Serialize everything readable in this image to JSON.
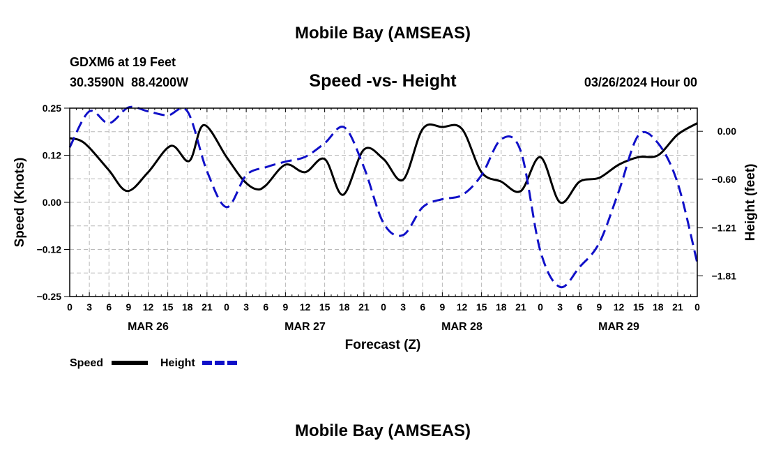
{
  "page": {
    "title_top": "Mobile Bay (AMSEAS)",
    "title_bottom": "Mobile Bay (AMSEAS)",
    "station_line": "GDXM6 at 19 Feet",
    "coords_line": "30.3590N  88.4200W",
    "datetime_line": "03/26/2024 Hour 00"
  },
  "colors": {
    "speed": "#000000",
    "height": "#1010c8"
  },
  "chart_data": {
    "type": "line",
    "title": "Speed -vs- Height",
    "xlabel": "Forecast (Z)",
    "ylabel": "Speed (Knots)",
    "y2label": "Height (feet)",
    "xlim": [
      0,
      96
    ],
    "ylim": [
      -0.25,
      0.25
    ],
    "y2lim": [
      -2.07,
      0.29
    ],
    "yticks": [
      {
        "v": 0.25,
        "label": "0.25"
      },
      {
        "v": 0.125,
        "label": "0.12"
      },
      {
        "v": 0.0,
        "label": "0.00"
      },
      {
        "v": -0.125,
        "label": "-0.12"
      },
      {
        "v": -0.25,
        "label": "-0.25"
      }
    ],
    "y2ticks": [
      {
        "v": 0.0,
        "label": "0.00"
      },
      {
        "v": -0.6,
        "label": "-0.60"
      },
      {
        "v": -1.21,
        "label": "-1.21"
      },
      {
        "v": -1.81,
        "label": "-1.81"
      }
    ],
    "xticks": [
      {
        "v": 0,
        "label": "0"
      },
      {
        "v": 3,
        "label": "3"
      },
      {
        "v": 6,
        "label": "6"
      },
      {
        "v": 9,
        "label": "9"
      },
      {
        "v": 12,
        "label": "12"
      },
      {
        "v": 15,
        "label": "15"
      },
      {
        "v": 18,
        "label": "18"
      },
      {
        "v": 21,
        "label": "21"
      },
      {
        "v": 24,
        "label": "0"
      },
      {
        "v": 27,
        "label": "3"
      },
      {
        "v": 30,
        "label": "6"
      },
      {
        "v": 33,
        "label": "9"
      },
      {
        "v": 36,
        "label": "12"
      },
      {
        "v": 39,
        "label": "15"
      },
      {
        "v": 42,
        "label": "18"
      },
      {
        "v": 45,
        "label": "21"
      },
      {
        "v": 48,
        "label": "0"
      },
      {
        "v": 51,
        "label": "3"
      },
      {
        "v": 54,
        "label": "6"
      },
      {
        "v": 57,
        "label": "9"
      },
      {
        "v": 60,
        "label": "12"
      },
      {
        "v": 63,
        "label": "15"
      },
      {
        "v": 66,
        "label": "18"
      },
      {
        "v": 69,
        "label": "21"
      },
      {
        "v": 72,
        "label": "0"
      },
      {
        "v": 75,
        "label": "3"
      },
      {
        "v": 78,
        "label": "6"
      },
      {
        "v": 81,
        "label": "9"
      },
      {
        "v": 84,
        "label": "12"
      },
      {
        "v": 87,
        "label": "15"
      },
      {
        "v": 90,
        "label": "18"
      },
      {
        "v": 93,
        "label": "21"
      },
      {
        "v": 96,
        "label": "0"
      }
    ],
    "day_labels": [
      {
        "v": 12,
        "label": "MAR 26"
      },
      {
        "v": 36,
        "label": "MAR 27"
      },
      {
        "v": 60,
        "label": "MAR 28"
      },
      {
        "v": 84,
        "label": "MAR 29"
      }
    ],
    "legend": [
      {
        "name": "Speed",
        "style": "solid"
      },
      {
        "name": "Height",
        "style": "dashed"
      }
    ],
    "series": [
      {
        "name": "Speed",
        "axis": "left",
        "points": [
          [
            0,
            0.17
          ],
          [
            1.5,
            0.165
          ],
          [
            3,
            0.145
          ],
          [
            6,
            0.085
          ],
          [
            8.8,
            0.03
          ],
          [
            12,
            0.08
          ],
          [
            15.5,
            0.15
          ],
          [
            18.3,
            0.11
          ],
          [
            20.5,
            0.205
          ],
          [
            24,
            0.12
          ],
          [
            26.5,
            0.06
          ],
          [
            28.5,
            0.035
          ],
          [
            30,
            0.045
          ],
          [
            33,
            0.1
          ],
          [
            36,
            0.08
          ],
          [
            39,
            0.115
          ],
          [
            41.8,
            0.02
          ],
          [
            45,
            0.14
          ],
          [
            48,
            0.115
          ],
          [
            51,
            0.06
          ],
          [
            54,
            0.195
          ],
          [
            57,
            0.2
          ],
          [
            60,
            0.195
          ],
          [
            63,
            0.08
          ],
          [
            66,
            0.055
          ],
          [
            69,
            0.03
          ],
          [
            72,
            0.12
          ],
          [
            75,
            0.0
          ],
          [
            78,
            0.055
          ],
          [
            81,
            0.065
          ],
          [
            84,
            0.1
          ],
          [
            87,
            0.12
          ],
          [
            90,
            0.125
          ],
          [
            93,
            0.18
          ],
          [
            96,
            0.21
          ]
        ]
      },
      {
        "name": "Height",
        "axis": "right",
        "points": [
          [
            0,
            -0.2
          ],
          [
            3,
            0.25
          ],
          [
            6,
            0.1
          ],
          [
            9,
            0.3
          ],
          [
            12,
            0.25
          ],
          [
            15,
            0.2
          ],
          [
            18,
            0.25
          ],
          [
            21,
            -0.5
          ],
          [
            24,
            -0.95
          ],
          [
            27,
            -0.55
          ],
          [
            30,
            -0.45
          ],
          [
            33,
            -0.38
          ],
          [
            36,
            -0.32
          ],
          [
            39,
            -0.15
          ],
          [
            42,
            0.05
          ],
          [
            45,
            -0.45
          ],
          [
            48,
            -1.15
          ],
          [
            51,
            -1.3
          ],
          [
            54,
            -0.95
          ],
          [
            57,
            -0.85
          ],
          [
            60,
            -0.8
          ],
          [
            63,
            -0.55
          ],
          [
            66,
            -0.1
          ],
          [
            69,
            -0.25
          ],
          [
            72,
            -1.5
          ],
          [
            75,
            -1.95
          ],
          [
            78,
            -1.7
          ],
          [
            81,
            -1.4
          ],
          [
            84,
            -0.75
          ],
          [
            87,
            -0.05
          ],
          [
            90,
            -0.15
          ],
          [
            93,
            -0.65
          ],
          [
            96,
            -1.65
          ]
        ]
      }
    ]
  }
}
